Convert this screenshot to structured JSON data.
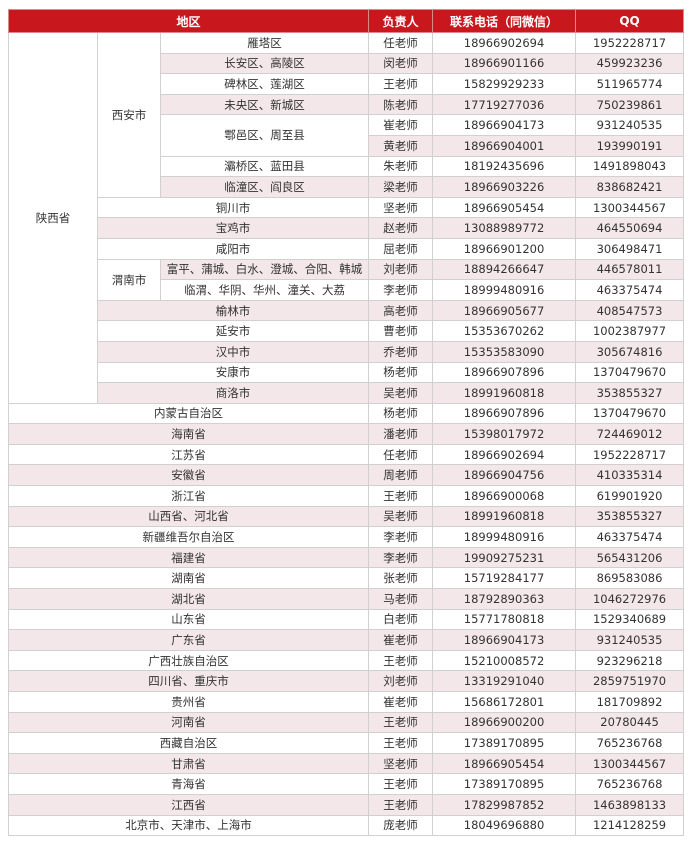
{
  "table": {
    "header": [
      "地区",
      "负责人",
      "联系电话（同微信）",
      "QQ"
    ],
    "regions": [
      {
        "name": "陕西省",
        "children": [
          {
            "name": "西安市",
            "children": [
              {
                "name": "雁塔区",
                "contacts": [
                  [
                    "任老师",
                    "18966902694",
                    "1952228717"
                  ]
                ]
              },
              {
                "name": "长安区、高陵区",
                "contacts": [
                  [
                    "闵老师",
                    "18966901166",
                    "459923236"
                  ]
                ]
              },
              {
                "name": "碑林区、莲湖区",
                "contacts": [
                  [
                    "王老师",
                    "15829929233",
                    "511965774"
                  ]
                ]
              },
              {
                "name": "未央区、新城区",
                "contacts": [
                  [
                    "陈老师",
                    "17719277036",
                    "750239861"
                  ]
                ]
              },
              {
                "name": "鄠邑区、周至县",
                "contacts": [
                  [
                    "崔老师",
                    "18966904173",
                    "931240535"
                  ],
                  [
                    "黄老师",
                    "18966904001",
                    "193990191"
                  ]
                ]
              },
              {
                "name": "灞桥区、蓝田县",
                "contacts": [
                  [
                    "朱老师",
                    "18192435696",
                    "1491898043"
                  ]
                ]
              },
              {
                "name": "临潼区、阎良区",
                "contacts": [
                  [
                    "梁老师",
                    "18966903226",
                    "838682421"
                  ]
                ]
              }
            ]
          },
          {
            "name": "铜川市",
            "contacts": [
              [
                "坚老师",
                "18966905454",
                "1300344567"
              ]
            ]
          },
          {
            "name": "宝鸡市",
            "contacts": [
              [
                "赵老师",
                "13088989772",
                "464550694"
              ]
            ]
          },
          {
            "name": "咸阳市",
            "contacts": [
              [
                "屈老师",
                "18966901200",
                "306498471"
              ]
            ]
          },
          {
            "name": "渭南市",
            "children": [
              {
                "name": "富平、蒲城、白水、澄城、合阳、韩城",
                "contacts": [
                  [
                    "刘老师",
                    "18894266647",
                    "446578011"
                  ]
                ]
              },
              {
                "name": "临渭、华阴、华州、潼关、大荔",
                "contacts": [
                  [
                    "李老师",
                    "18999480916",
                    "463375474"
                  ]
                ]
              }
            ]
          },
          {
            "name": "榆林市",
            "contacts": [
              [
                "高老师",
                "18966905677",
                "408547573"
              ]
            ]
          },
          {
            "name": "延安市",
            "contacts": [
              [
                "曹老师",
                "15353670262",
                "1002387977"
              ]
            ]
          },
          {
            "name": "汉中市",
            "contacts": [
              [
                "乔老师",
                "15353583090",
                "305674816"
              ]
            ]
          },
          {
            "name": "安康市",
            "contacts": [
              [
                "杨老师",
                "18966907896",
                "1370479670"
              ]
            ]
          },
          {
            "name": "商洛市",
            "contacts": [
              [
                "吴老师",
                "18991960818",
                "353855327"
              ]
            ]
          }
        ]
      },
      {
        "name": "内蒙古自治区",
        "contacts": [
          [
            "杨老师",
            "18966907896",
            "1370479670"
          ]
        ]
      },
      {
        "name": "海南省",
        "contacts": [
          [
            "潘老师",
            "15398017972",
            "724469012"
          ]
        ]
      },
      {
        "name": "江苏省",
        "contacts": [
          [
            "任老师",
            "18966902694",
            "1952228717"
          ]
        ]
      },
      {
        "name": "安徽省",
        "contacts": [
          [
            "周老师",
            "18966904756",
            "410335314"
          ]
        ]
      },
      {
        "name": "浙江省",
        "contacts": [
          [
            "王老师",
            "18966900068",
            "619901920"
          ]
        ]
      },
      {
        "name": "山西省、河北省",
        "contacts": [
          [
            "吴老师",
            "18991960818",
            "353855327"
          ]
        ]
      },
      {
        "name": "新疆维吾尔自治区",
        "contacts": [
          [
            "李老师",
            "18999480916",
            "463375474"
          ]
        ]
      },
      {
        "name": "福建省",
        "contacts": [
          [
            "李老师",
            "19909275231",
            "565431206"
          ]
        ]
      },
      {
        "name": "湖南省",
        "contacts": [
          [
            "张老师",
            "15719284177",
            "869583086"
          ]
        ]
      },
      {
        "name": "湖北省",
        "contacts": [
          [
            "马老师",
            "18792890363",
            "1046272976"
          ]
        ]
      },
      {
        "name": "山东省",
        "contacts": [
          [
            "白老师",
            "15771780818",
            "1529340689"
          ]
        ]
      },
      {
        "name": "广东省",
        "contacts": [
          [
            "崔老师",
            "18966904173",
            "931240535"
          ]
        ]
      },
      {
        "name": "广西壮族自治区",
        "contacts": [
          [
            "王老师",
            "15210008572",
            "923296218"
          ]
        ]
      },
      {
        "name": "四川省、重庆市",
        "contacts": [
          [
            "刘老师",
            "13319291040",
            "2859751970"
          ]
        ]
      },
      {
        "name": "贵州省",
        "contacts": [
          [
            "崔老师",
            "15686172801",
            "181709892"
          ]
        ]
      },
      {
        "name": "河南省",
        "contacts": [
          [
            "王老师",
            "18966900200",
            "20780445"
          ]
        ]
      },
      {
        "name": "西藏自治区",
        "contacts": [
          [
            "王老师",
            "17389170895",
            "765236768"
          ]
        ]
      },
      {
        "name": "甘肃省",
        "contacts": [
          [
            "坚老师",
            "18966905454",
            "1300344567"
          ]
        ]
      },
      {
        "name": "青海省",
        "contacts": [
          [
            "王老师",
            "17389170895",
            "765236768"
          ]
        ]
      },
      {
        "name": "江西省",
        "contacts": [
          [
            "王老师",
            "17829987852",
            "1463898133"
          ]
        ]
      },
      {
        "name": "北京市、天津市、上海市",
        "contacts": [
          [
            "庞老师",
            "18049696880",
            "1214128259"
          ]
        ]
      }
    ]
  }
}
